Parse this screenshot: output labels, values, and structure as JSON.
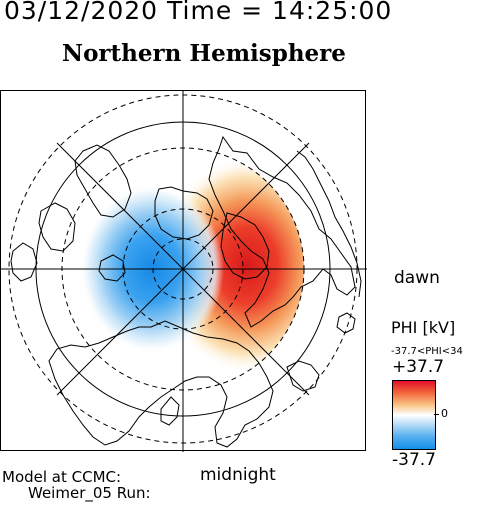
{
  "header": {
    "date_time": "03/12/2020 Time = 14:25:00",
    "title": "Northern Hemisphere"
  },
  "map": {
    "labels": {
      "dawn": "dawn",
      "midnight": "midnight"
    },
    "contours": {
      "positive_cell_color": "#e02020",
      "negative_cell_color": "#1a8de8",
      "continent_outline_color": "#000000"
    }
  },
  "legend": {
    "title": "PHI [kV]",
    "range_text": "-37.7<PHI<34",
    "max": "+37.7",
    "zero": "0",
    "min": "-37.7",
    "colors": {
      "high": "#e3102a",
      "mid": "#ffffff",
      "low": "#138ee8"
    }
  },
  "footer": {
    "model_line": "Model at CCMC:",
    "run_line": "Weimer_05 Run:"
  }
}
